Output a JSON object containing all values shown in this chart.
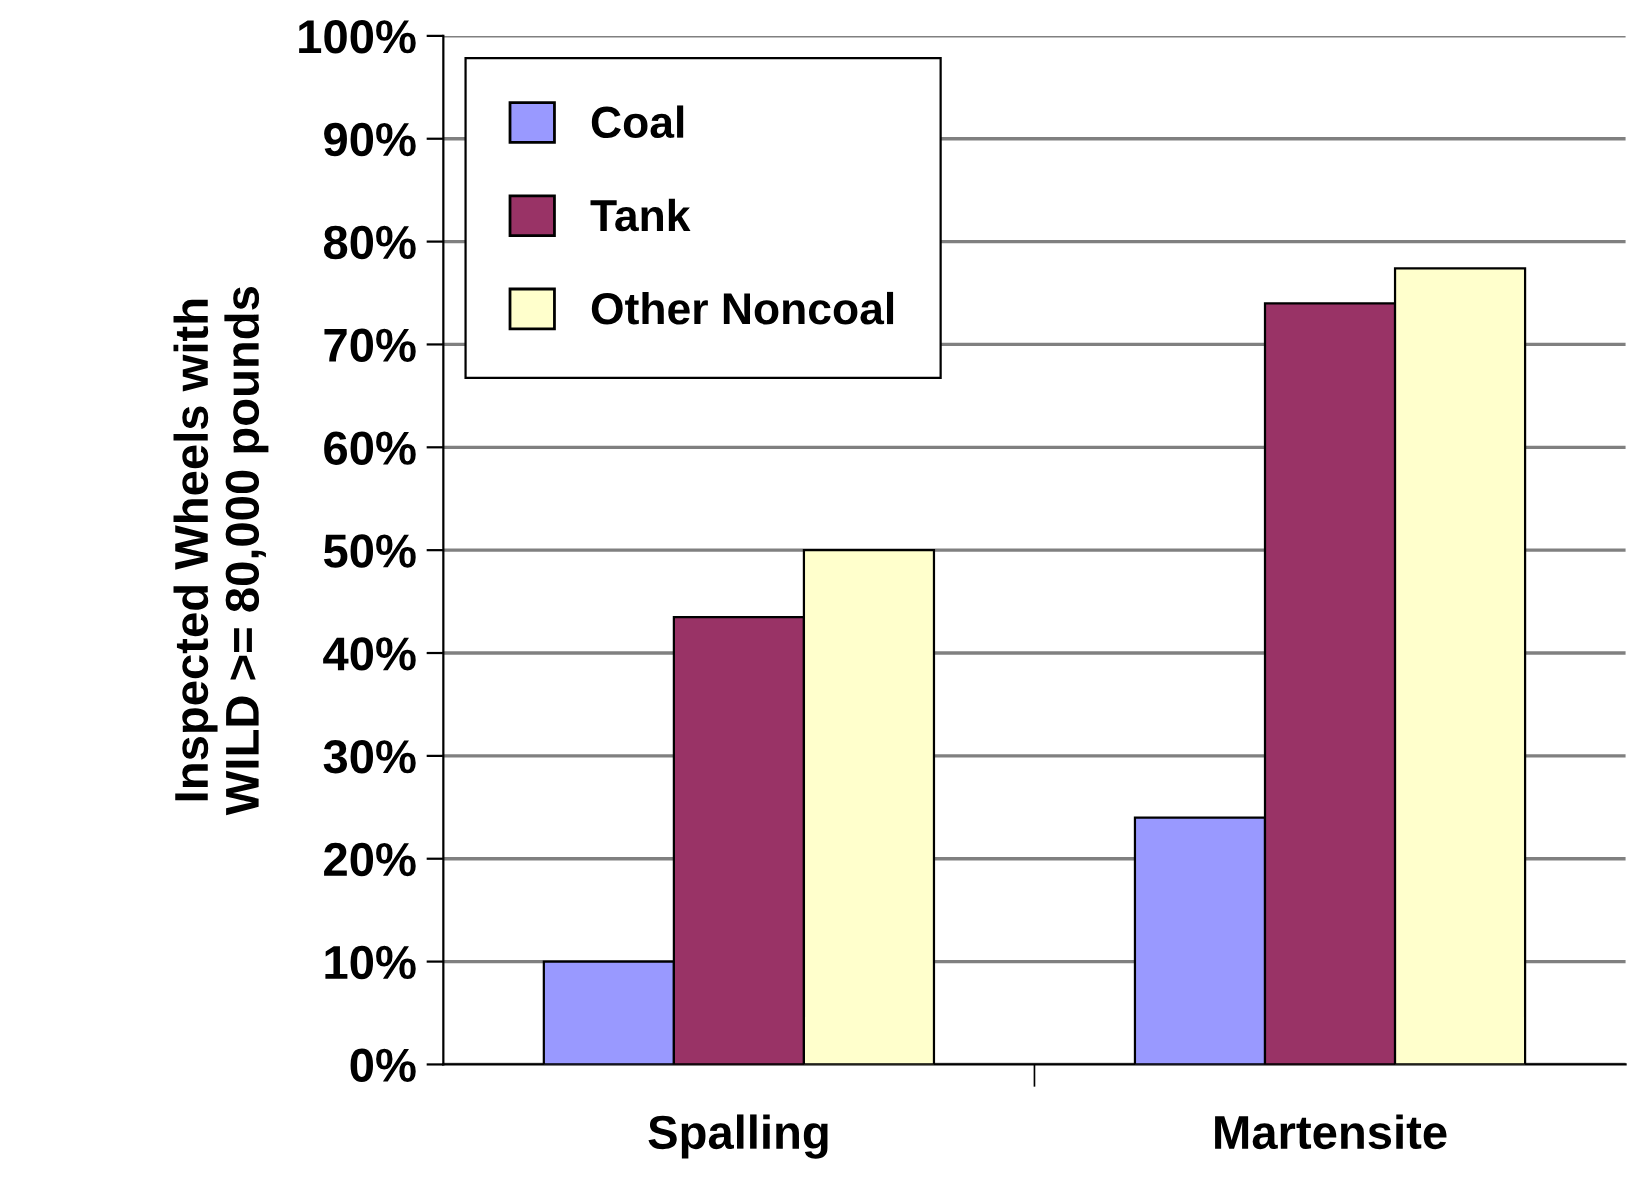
{
  "chart_data": {
    "type": "bar",
    "ylabel": "Inspected Wheels with\nWILD >= 80,000 pounds",
    "categories": [
      "Spalling",
      "Martensite"
    ],
    "series": [
      {
        "name": "Coal",
        "color": "#9999ff",
        "values": [
          10,
          24
        ]
      },
      {
        "name": "Tank",
        "color": "#993366",
        "values": [
          43.5,
          74
        ]
      },
      {
        "name": "Other Noncoal",
        "color": "#ffffcc",
        "values": [
          50,
          77.4
        ]
      }
    ],
    "ylim": [
      0,
      100
    ],
    "yticks": [
      {
        "value": 0,
        "label": "0%"
      },
      {
        "value": 10,
        "label": "10%"
      },
      {
        "value": 20,
        "label": "20%"
      },
      {
        "value": 30,
        "label": "30%"
      },
      {
        "value": 40,
        "label": "40%"
      },
      {
        "value": 50,
        "label": "50%"
      },
      {
        "value": 60,
        "label": "60%"
      },
      {
        "value": 70,
        "label": "70%"
      },
      {
        "value": 80,
        "label": "80%"
      },
      {
        "value": 90,
        "label": "90%"
      },
      {
        "value": 100,
        "label": "100%"
      }
    ],
    "grid": "y",
    "legend": "top left"
  }
}
